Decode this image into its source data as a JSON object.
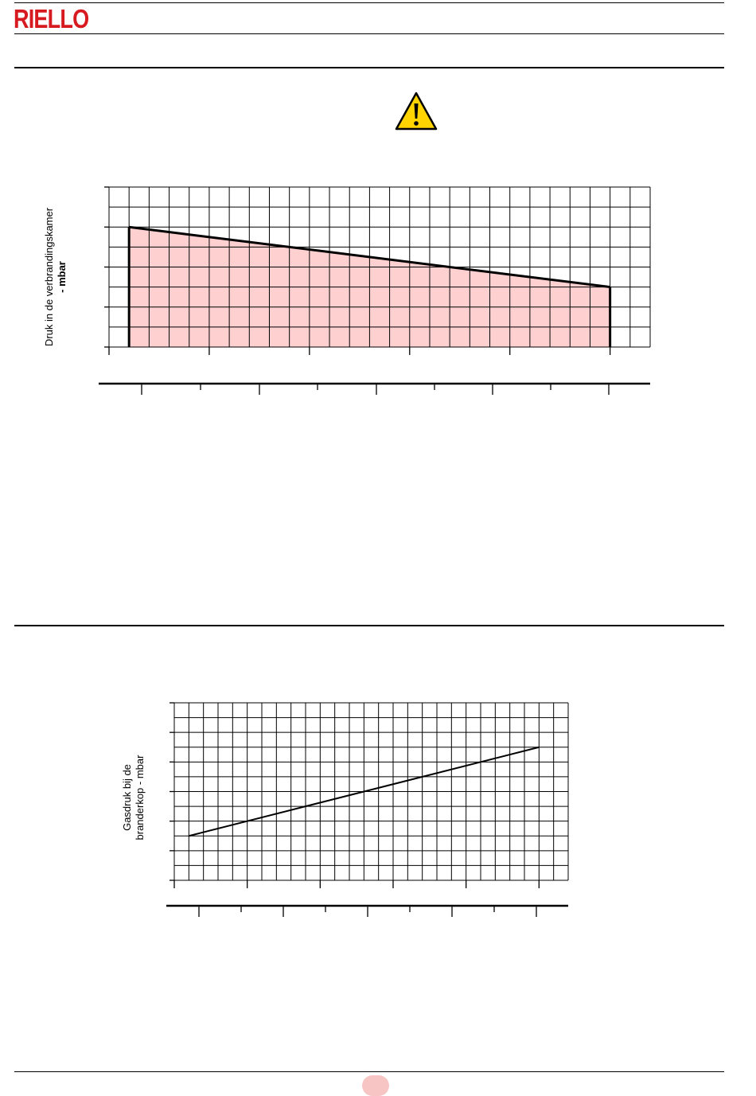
{
  "header": {
    "logo_text": "RIELLO",
    "brand_color": "#d71920"
  },
  "warning_icon": "warning-triangle-icon",
  "colors": {
    "fill": "#ffd0d0",
    "grid": "#000000"
  },
  "chart_data": [
    {
      "type": "area",
      "title": "",
      "ylabel_line1": "Druk in de verbrandingskamer",
      "ylabel_line2": "- mbar",
      "grid": true,
      "series": [
        {
          "points": [
            [
              1,
              6
            ],
            [
              25,
              3
            ]
          ]
        }
      ],
      "xlim": [
        0,
        27
      ],
      "ylim": [
        0,
        8
      ],
      "secondary_x_axis": true
    },
    {
      "type": "line",
      "title": "",
      "ylabel_line1": "Gasdruk bij de",
      "ylabel_line2": "branderkop - mbar",
      "grid": true,
      "series": [
        {
          "points": [
            [
              1,
              3
            ],
            [
              25,
              9
            ]
          ]
        }
      ],
      "xlim": [
        0,
        27
      ],
      "ylim": [
        0,
        12
      ],
      "secondary_x_axis": true
    }
  ]
}
